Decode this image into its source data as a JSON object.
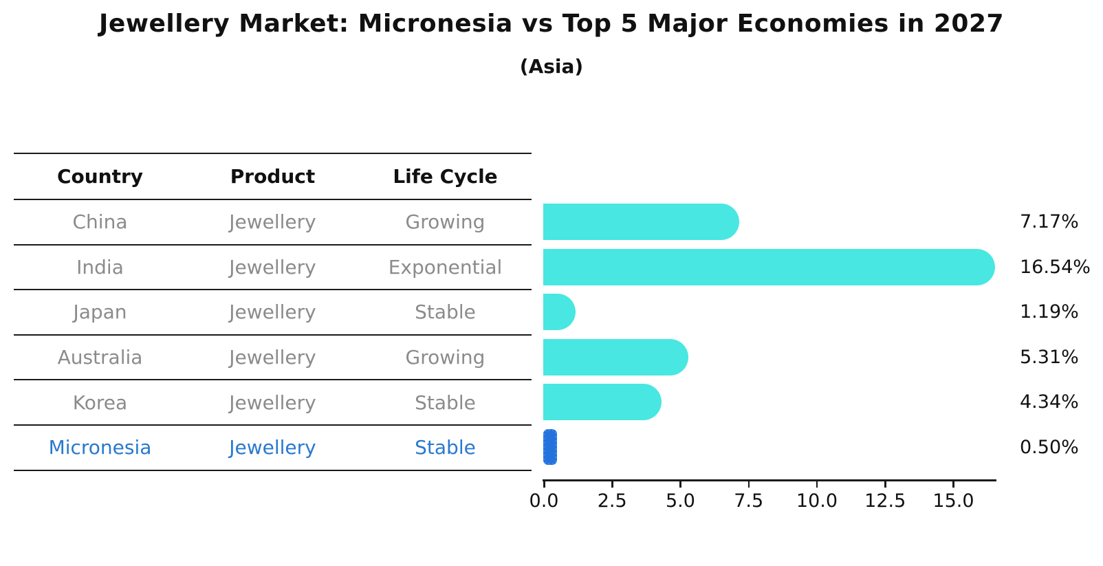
{
  "title": "Jewellery Market: Micronesia vs Top 5 Major Economies in 2027",
  "subtitle": "(Asia)",
  "table": {
    "headers": [
      "Country",
      "Product",
      "Life Cycle"
    ],
    "rows": [
      {
        "country": "China",
        "product": "Jewellery",
        "life_cycle": "Growing",
        "highlight": false
      },
      {
        "country": "India",
        "product": "Jewellery",
        "life_cycle": "Exponential",
        "highlight": false
      },
      {
        "country": "Japan",
        "product": "Jewellery",
        "life_cycle": "Stable",
        "highlight": false
      },
      {
        "country": "Australia",
        "product": "Jewellery",
        "life_cycle": "Growing",
        "highlight": false
      },
      {
        "country": "Korea",
        "product": "Jewellery",
        "life_cycle": "Stable",
        "highlight": false
      },
      {
        "country": "Micronesia",
        "product": "Jewellery",
        "life_cycle": "Stable",
        "highlight": true
      }
    ]
  },
  "chart_data": {
    "type": "bar",
    "orientation": "horizontal",
    "title": "Jewellery Market: Micronesia vs Top 5 Major Economies in 2027",
    "subtitle": "(Asia)",
    "categories": [
      "China",
      "India",
      "Japan",
      "Australia",
      "Korea",
      "Micronesia"
    ],
    "values": [
      7.17,
      16.54,
      1.19,
      5.31,
      4.34,
      0.5
    ],
    "value_labels": [
      "7.17%",
      "16.54%",
      "1.19%",
      "5.31%",
      "4.34%",
      "0.50%"
    ],
    "highlight_index": 5,
    "x_ticks": [
      0.0,
      2.5,
      5.0,
      7.5,
      10.0,
      12.5,
      15.0
    ],
    "x_tick_labels": [
      "0.0",
      "2.5",
      "5.0",
      "7.5",
      "10.0",
      "12.5",
      "15.0"
    ],
    "xlim": [
      0,
      16.6
    ],
    "grid": false,
    "legend": "none",
    "bar_color": "#48e7e1",
    "highlight_color": "#2472db",
    "highlight_text_color": "#2979ce",
    "text_color_muted": "#8b8b8b"
  }
}
